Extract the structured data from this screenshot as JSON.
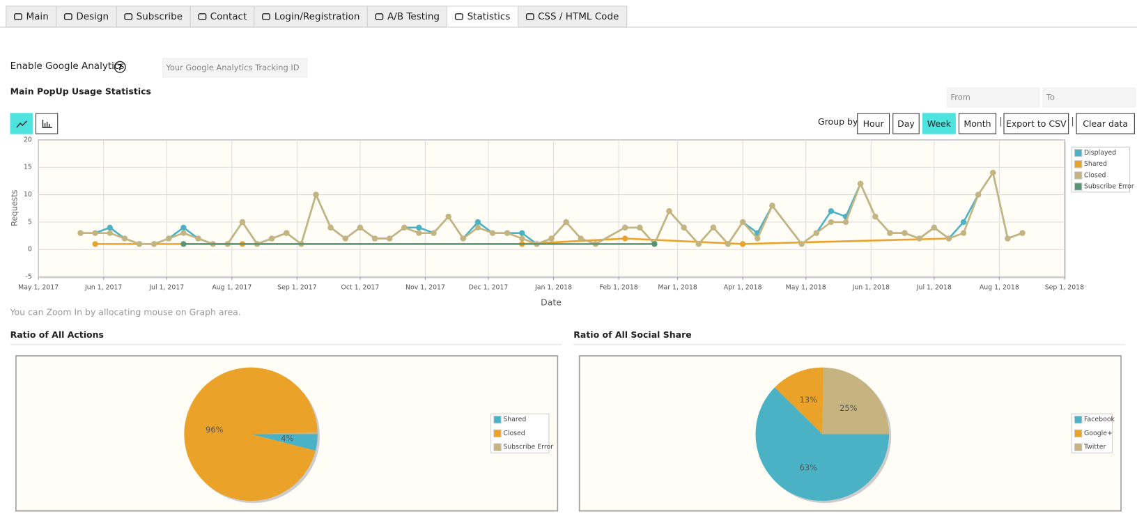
{
  "tabs": [
    "Main",
    "Design",
    "Subscribe",
    "Contact",
    "Login/Registration",
    "A/B Testing",
    "Statistics",
    "CSS / HTML Code"
  ],
  "active_tab": 6,
  "analytics": {
    "label": "Enable Google Analytics",
    "placeholder": "Your Google Analytics Tracking ID"
  },
  "date_from": "From",
  "date_to": "To",
  "group_by": {
    "label": "Group by:",
    "options": [
      "Hour",
      "Day",
      "Week",
      "Month"
    ],
    "active": 2
  },
  "separator": "|",
  "export": "Export to CSV",
  "clear": "Clear data",
  "zoom_note": "You can Zoom In by allocating mouse on Graph area.",
  "chart_data": [
    {
      "type": "line",
      "title": "Main PopUp Usage Statistics",
      "x_label": "Date",
      "y_label": "Requests",
      "xlim": [
        "2017-05-01",
        "2018-09-01"
      ],
      "xticks": [
        {
          "value": "2017-05-01",
          "label": "May 1, 2017"
        },
        {
          "value": "2017-06-01",
          "label": "Jun 1, 2017"
        },
        {
          "value": "2017-07-01",
          "label": "Jul 1, 2017"
        },
        {
          "value": "2017-08-01",
          "label": "Aug 1, 2017"
        },
        {
          "value": "2017-09-01",
          "label": "Sep 1, 2017"
        },
        {
          "value": "2017-10-01",
          "label": "Oct 1, 2017"
        },
        {
          "value": "2017-11-01",
          "label": "Nov 1, 2017"
        },
        {
          "value": "2017-12-01",
          "label": "Dec 1, 2017"
        },
        {
          "value": "2018-01-01",
          "label": "Jan 1, 2018"
        },
        {
          "value": "2018-02-01",
          "label": "Feb 1, 2018"
        },
        {
          "value": "2018-03-01",
          "label": "Mar 1, 2018"
        },
        {
          "value": "2018-04-01",
          "label": "Apr 1, 2018"
        },
        {
          "value": "2018-05-01",
          "label": "May 1, 2018"
        },
        {
          "value": "2018-06-01",
          "label": "Jun 1, 2018"
        },
        {
          "value": "2018-07-01",
          "label": "Jul 1, 2018"
        },
        {
          "value": "2018-08-01",
          "label": "Aug 1, 2018"
        },
        {
          "value": "2018-09-01",
          "label": "Sep 1, 2018"
        }
      ],
      "ylim": [
        -5,
        20
      ],
      "yticks": [
        -5,
        0,
        5,
        10,
        15,
        20
      ],
      "grid": true,
      "legend": "right",
      "series": [
        {
          "name": "Displayed",
          "color": "#4bb2c5",
          "x": [
            "2017-05-21",
            "2017-05-28",
            "2017-06-04",
            "2017-06-11",
            "2017-06-18",
            "2017-06-25",
            "2017-07-02",
            "2017-07-09",
            "2017-07-16",
            "2017-07-23",
            "2017-07-30",
            "2017-08-06",
            "2017-08-13",
            "2017-08-20",
            "2017-08-27",
            "2017-09-03",
            "2017-09-10",
            "2017-09-17",
            "2017-09-24",
            "2017-10-01",
            "2017-10-08",
            "2017-10-15",
            "2017-10-22",
            "2017-10-29",
            "2017-11-05",
            "2017-11-12",
            "2017-11-19",
            "2017-11-26",
            "2017-12-03",
            "2017-12-10",
            "2017-12-17",
            "2017-12-24",
            "2017-12-31",
            "2018-01-07",
            "2018-01-14",
            "2018-01-21",
            "2018-02-04",
            "2018-02-11",
            "2018-02-18",
            "2018-02-25",
            "2018-03-04",
            "2018-03-11",
            "2018-03-18",
            "2018-03-25",
            "2018-04-01",
            "2018-04-08",
            "2018-04-15",
            "2018-04-29",
            "2018-05-06",
            "2018-05-13",
            "2018-05-20",
            "2018-05-27",
            "2018-06-03",
            "2018-06-10",
            "2018-06-17",
            "2018-06-24",
            "2018-07-01",
            "2018-07-08",
            "2018-07-15",
            "2018-07-22",
            "2018-07-29",
            "2018-08-05",
            "2018-08-12"
          ],
          "values": [
            3,
            3,
            4,
            2,
            1,
            1,
            2,
            4,
            2,
            1,
            1,
            5,
            1,
            2,
            3,
            1,
            10,
            4,
            2,
            4,
            2,
            2,
            4,
            4,
            3,
            6,
            2,
            5,
            3,
            3,
            3,
            1,
            2,
            5,
            2,
            1,
            4,
            4,
            1,
            7,
            4,
            1,
            4,
            1,
            5,
            3,
            8,
            1,
            3,
            7,
            6,
            12,
            6,
            3,
            3,
            2,
            4,
            2,
            5,
            10,
            14,
            2,
            3
          ]
        },
        {
          "name": "Shared",
          "color": "#eaa228",
          "x": [
            "2017-05-28",
            "2017-08-06",
            "2017-12-17",
            "2018-02-04",
            "2018-04-01",
            "2018-07-08"
          ],
          "values": [
            1,
            1,
            1,
            2,
            1,
            2
          ]
        },
        {
          "name": "Closed",
          "color": "#c5b47f",
          "x": [
            "2017-05-21",
            "2017-05-28",
            "2017-06-04",
            "2017-06-11",
            "2017-06-18",
            "2017-06-25",
            "2017-07-02",
            "2017-07-09",
            "2017-07-16",
            "2017-07-23",
            "2017-07-30",
            "2017-08-06",
            "2017-08-13",
            "2017-08-20",
            "2017-08-27",
            "2017-09-03",
            "2017-09-10",
            "2017-09-17",
            "2017-09-24",
            "2017-10-01",
            "2017-10-08",
            "2017-10-15",
            "2017-10-22",
            "2017-10-29",
            "2017-11-05",
            "2017-11-12",
            "2017-11-19",
            "2017-11-26",
            "2017-12-03",
            "2017-12-10",
            "2017-12-17",
            "2017-12-24",
            "2017-12-31",
            "2018-01-07",
            "2018-01-14",
            "2018-01-21",
            "2018-02-04",
            "2018-02-11",
            "2018-02-18",
            "2018-02-25",
            "2018-03-04",
            "2018-03-11",
            "2018-03-18",
            "2018-03-25",
            "2018-04-01",
            "2018-04-08",
            "2018-04-15",
            "2018-04-29",
            "2018-05-06",
            "2018-05-13",
            "2018-05-20",
            "2018-05-27",
            "2018-06-03",
            "2018-06-10",
            "2018-06-17",
            "2018-06-24",
            "2018-07-01",
            "2018-07-08",
            "2018-07-15",
            "2018-07-22",
            "2018-07-29",
            "2018-08-05",
            "2018-08-12"
          ],
          "values": [
            3,
            3,
            3,
            2,
            1,
            1,
            2,
            3,
            2,
            1,
            1,
            5,
            1,
            2,
            3,
            1,
            10,
            4,
            2,
            4,
            2,
            2,
            4,
            3,
            3,
            6,
            2,
            4,
            3,
            3,
            2,
            1,
            2,
            5,
            2,
            1,
            4,
            4,
            1,
            7,
            4,
            1,
            4,
            1,
            5,
            2,
            8,
            1,
            3,
            5,
            5,
            12,
            6,
            3,
            3,
            2,
            4,
            2,
            3,
            10,
            14,
            2,
            3
          ]
        },
        {
          "name": "Subscribe Error",
          "color": "#579575",
          "x": [
            "2017-07-09",
            "2018-02-18"
          ],
          "values": [
            1,
            1
          ]
        }
      ]
    },
    {
      "type": "pie",
      "title": "Ratio of All Actions",
      "categories": [
        "Shared",
        "Closed",
        "Subscribe Error"
      ],
      "values": [
        4,
        96,
        0.5
      ],
      "value_labels": [
        "4%",
        "96%",
        null
      ],
      "colors": [
        "#4bb2c5",
        "#eaa228",
        "#c5b47f"
      ],
      "legend": "right"
    },
    {
      "type": "pie",
      "title": "Ratio of All Social Share",
      "categories": [
        "Facebook",
        "Google+",
        "Twitter"
      ],
      "values": [
        63,
        13,
        25
      ],
      "value_labels": [
        "63%",
        "13%",
        "25%"
      ],
      "colors": [
        "#4bb2c5",
        "#eaa228",
        "#c5b47f"
      ],
      "legend": "right"
    }
  ]
}
